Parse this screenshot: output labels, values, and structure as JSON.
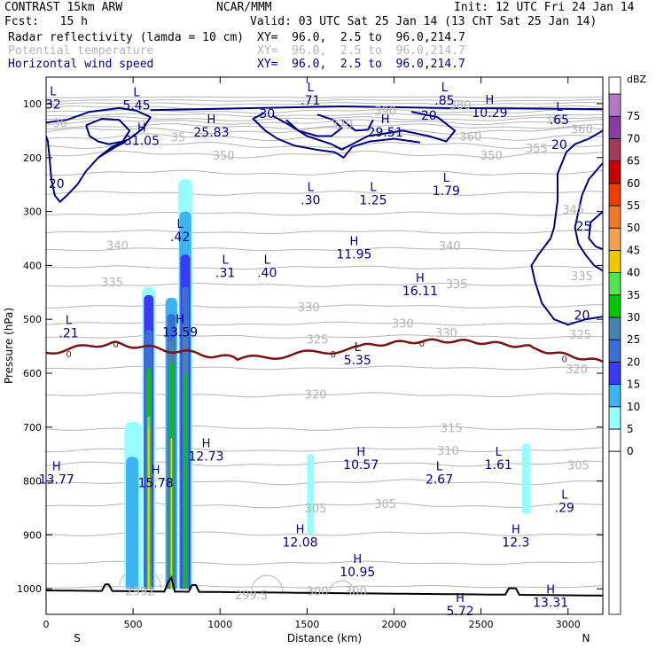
{
  "header": {
    "model": "CONTRAST 15km ARW",
    "center": "NCAR/MMM",
    "init": "Init: 12 UTC Fri 24 Jan 14",
    "fcst": "Fcst:   15 h",
    "valid": "Valid: 03 UTC Sat 25 Jan 14 (13 ChT Sat 25 Jan 14)",
    "fields": [
      {
        "name": "Radar reflectivity (lamda = 10 cm)",
        "xy": "XY=  96.0,  2.5 to  96.0,214.7",
        "color": "#000000"
      },
      {
        "name": "Potential temperature",
        "xy": "XY=  96.0,  2.5 to  96.0,214.7",
        "color": "#b4b4b4"
      },
      {
        "name": "Horizontal wind speed",
        "xy": "XY=  96.0,  2.5 to  96.0,214.7",
        "color": "#000080"
      }
    ]
  },
  "chart_data": {
    "type": "cross-section",
    "xlabel": "Distance (km)",
    "ylabel": "Pressure (hPa)",
    "xlim": [
      0,
      3200
    ],
    "ylim": [
      1050,
      80
    ],
    "x_ticks": [
      0,
      500,
      1000,
      1500,
      2000,
      2500,
      3000
    ],
    "y_ticks": [
      100,
      200,
      300,
      400,
      500,
      600,
      700,
      800,
      900,
      1000
    ],
    "end_labels": {
      "left": "S",
      "right": "N"
    },
    "colorbar": {
      "unit": "dBZ",
      "levels": [
        0,
        5,
        10,
        15,
        20,
        25,
        30,
        35,
        40,
        45,
        50,
        55,
        60,
        65,
        70,
        75
      ],
      "colors": [
        "#ffffff",
        "#96fcfc",
        "#3cb4f0",
        "#3a3af5",
        "#3c6ed4",
        "#4682b4",
        "#00c800",
        "#50e650",
        "#f0c800",
        "#f5a050",
        "#f07828",
        "#f03c00",
        "#c80000",
        "#a03c5a",
        "#8c3ca0",
        "#b478c8"
      ]
    },
    "theta_labels": [
      {
        "x": 1950,
        "p": 112,
        "text": "390"
      },
      {
        "x": 2380,
        "p": 102,
        "text": "380"
      },
      {
        "x": 80,
        "p": 135,
        "text": "36"
      },
      {
        "x": 1700,
        "p": 137,
        "text": "370"
      },
      {
        "x": 2930,
        "p": 128,
        "text": "365"
      },
      {
        "x": 3080,
        "p": 147,
        "text": "360"
      },
      {
        "x": 2440,
        "p": 160,
        "text": "360"
      },
      {
        "x": 760,
        "p": 162,
        "text": "35"
      },
      {
        "x": 2820,
        "p": 182,
        "text": "355"
      },
      {
        "x": 1020,
        "p": 195,
        "text": "350"
      },
      {
        "x": 2560,
        "p": 195,
        "text": "350"
      },
      {
        "x": 3030,
        "p": 296,
        "text": "345"
      },
      {
        "x": 410,
        "p": 362,
        "text": "340"
      },
      {
        "x": 2320,
        "p": 363,
        "text": "340"
      },
      {
        "x": 380,
        "p": 431,
        "text": "335"
      },
      {
        "x": 2360,
        "p": 434,
        "text": "335"
      },
      {
        "x": 3080,
        "p": 419,
        "text": "335"
      },
      {
        "x": 1510,
        "p": 477,
        "text": "330"
      },
      {
        "x": 2050,
        "p": 507,
        "text": "330"
      },
      {
        "x": 2300,
        "p": 524,
        "text": "330"
      },
      {
        "x": 1560,
        "p": 537,
        "text": "325"
      },
      {
        "x": 3070,
        "p": 528,
        "text": "325"
      },
      {
        "x": 3050,
        "p": 592,
        "text": "320"
      },
      {
        "x": 1550,
        "p": 639,
        "text": "320"
      },
      {
        "x": 2330,
        "p": 701,
        "text": "315"
      },
      {
        "x": 2310,
        "p": 743,
        "text": "310"
      },
      {
        "x": 3060,
        "p": 770,
        "text": "305"
      },
      {
        "x": 1550,
        "p": 850,
        "text": "305"
      },
      {
        "x": 1950,
        "p": 842,
        "text": "305"
      },
      {
        "x": 1560,
        "p": 1004,
        "text": "300"
      },
      {
        "x": 1780,
        "p": 1004,
        "text": "300"
      },
      {
        "x": 1180,
        "p": 1011,
        "text": "299.5"
      },
      {
        "x": 540,
        "p": 1004,
        "text": "2992"
      }
    ],
    "wind_labels": [
      {
        "x": 60,
        "p": 248,
        "text": "20"
      },
      {
        "x": 1270,
        "p": 118,
        "text": "30"
      },
      {
        "x": 2200,
        "p": 121,
        "text": "20"
      },
      {
        "x": 2950,
        "p": 176,
        "text": "20"
      },
      {
        "x": 3090,
        "p": 327,
        "text": "25"
      },
      {
        "x": 3080,
        "p": 492,
        "text": "20"
      }
    ],
    "freezing_labels": [
      {
        "x": 130,
        "p": 564,
        "text": "0"
      },
      {
        "x": 400,
        "p": 546,
        "text": "0"
      },
      {
        "x": 1650,
        "p": 564,
        "text": "0"
      },
      {
        "x": 2160,
        "p": 544,
        "text": "0"
      },
      {
        "x": 2980,
        "p": 573,
        "text": "0"
      }
    ],
    "extrema": [
      {
        "type": "L",
        "value": "32",
        "x": 40,
        "p": 84
      },
      {
        "type": "L",
        "value": "5.45",
        "x": 520,
        "p": 86
      },
      {
        "type": "L",
        "value": ".71",
        "x": 1520,
        "p": 77
      },
      {
        "type": "L",
        "value": ".85",
        "x": 2290,
        "p": 77
      },
      {
        "type": "H",
        "value": "10.29",
        "x": 2550,
        "p": 100
      },
      {
        "type": "L",
        "value": ".65",
        "x": 2950,
        "p": 113
      },
      {
        "type": "H",
        "value": "31.05",
        "x": 550,
        "p": 152
      },
      {
        "type": "H",
        "value": "25.83",
        "x": 950,
        "p": 136
      },
      {
        "type": "H",
        "value": "29.51",
        "x": 1950,
        "p": 136
      },
      {
        "type": "L",
        "value": ".30",
        "x": 1520,
        "p": 262
      },
      {
        "type": "L",
        "value": "1.25",
        "x": 1880,
        "p": 262
      },
      {
        "type": "L",
        "value": "1.79",
        "x": 2300,
        "p": 245
      },
      {
        "type": "L",
        "value": ".42",
        "x": 770,
        "p": 330
      },
      {
        "type": "H",
        "value": "11.95",
        "x": 1770,
        "p": 362
      },
      {
        "type": "L",
        "value": ".31",
        "x": 1030,
        "p": 397
      },
      {
        "type": "L",
        "value": ".40",
        "x": 1270,
        "p": 397
      },
      {
        "type": "H",
        "value": "16.11",
        "x": 2150,
        "p": 431
      },
      {
        "type": "L",
        "value": ".21",
        "x": 130,
        "p": 509
      },
      {
        "type": "H",
        "value": "13.59",
        "x": 770,
        "p": 507
      },
      {
        "type": "L",
        "value": "5.35",
        "x": 1790,
        "p": 559
      },
      {
        "type": "H",
        "value": "12.73",
        "x": 920,
        "p": 737
      },
      {
        "type": "H",
        "value": "10.57",
        "x": 1810,
        "p": 753
      },
      {
        "type": "L",
        "value": "1.61",
        "x": 2600,
        "p": 753
      },
      {
        "type": "H",
        "value": "13.77",
        "x": 60,
        "p": 780
      },
      {
        "type": "H",
        "value": "15.78",
        "x": 630,
        "p": 787
      },
      {
        "type": "L",
        "value": "2.67",
        "x": 2260,
        "p": 780
      },
      {
        "type": "L",
        "value": ".29",
        "x": 2980,
        "p": 833
      },
      {
        "type": "H",
        "value": "12.08",
        "x": 1460,
        "p": 897
      },
      {
        "type": "H",
        "value": "12.3",
        "x": 2700,
        "p": 897
      },
      {
        "type": "H",
        "value": "10.95",
        "x": 1790,
        "p": 952
      },
      {
        "type": "H",
        "value": "13.31",
        "x": 2900,
        "p": 1009
      },
      {
        "type": "H",
        "value": "5.72",
        "x": 2380,
        "p": 1024
      }
    ]
  }
}
